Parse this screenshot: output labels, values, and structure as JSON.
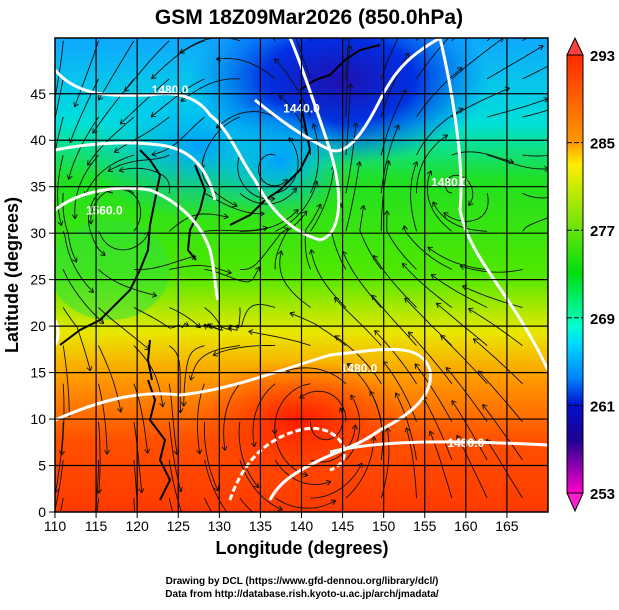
{
  "title": "GSM 18Z09Mar2026 (850.0hPa)",
  "chart_data": {
    "type": "heatmap",
    "title": "GSM 18Z09Mar2026 (850.0hPa)",
    "xlabel": "Longitude (degrees)",
    "ylabel": "Latitude  (degrees)",
    "xlim": [
      110,
      170
    ],
    "ylim": [
      0,
      51
    ],
    "xticks": [
      110,
      115,
      120,
      125,
      130,
      135,
      140,
      145,
      150,
      155,
      160,
      165
    ],
    "yticks": [
      0,
      5,
      10,
      15,
      20,
      25,
      30,
      35,
      40,
      45
    ],
    "grid": true,
    "colorbar": {
      "labels": [
        293,
        285,
        277,
        269,
        261,
        253
      ],
      "min": 253,
      "max": 293,
      "colors": [
        "#ff00cc",
        "#0000aa",
        "#00ccff",
        "#00ee00",
        "#ffee00",
        "#ff2a00"
      ]
    },
    "contour_labels": [
      {
        "text": "1480.0",
        "lon": 124,
        "lat": 45
      },
      {
        "text": "1440.0",
        "lon": 140,
        "lat": 43
      },
      {
        "text": "1560.0",
        "lon": 116,
        "lat": 32
      },
      {
        "text": "1480.0",
        "lon": 158,
        "lat": 35
      },
      {
        "text": "1480.0",
        "lon": 147,
        "lat": 15
      },
      {
        "text": "1480.0",
        "lon": 160,
        "lat": 7
      }
    ]
  },
  "footer": {
    "line1": "Drawing by DCL (https://www.gfd-dennou.org/library/dcl/)",
    "line2": "Data from http://database.rish.kyoto-u.ac.jp/arch/jmadata/"
  }
}
